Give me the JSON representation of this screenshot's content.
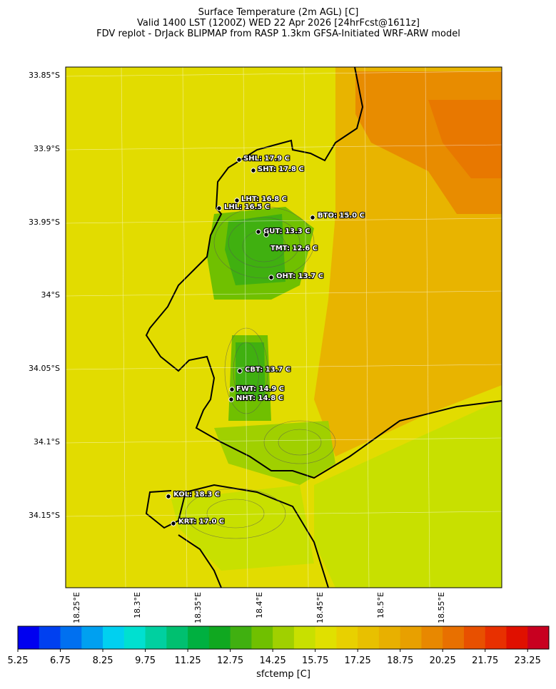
{
  "title": {
    "lines": [
      "Surface Temperature (2m AGL) [C]",
      "Valid 1400 LST (1200Z) WED 22 Apr 2026 [24hrFcst@1611z]",
      "FDV replot - DrJack BLIPMAP from RASP 1.3km GFSA-Initiated WRF-ARW model"
    ]
  },
  "lat_labels": [
    "33.85°S",
    "33.9°S",
    "33.95°S",
    "34°S",
    "34.05°S",
    "34.1°S",
    "34.15°S"
  ],
  "lon_labels": [
    "18.25°E",
    "18.3°E",
    "18.35°E",
    "18.4°E",
    "18.45°E",
    "18.5°E",
    "18.55°E"
  ],
  "stations": [
    "SHL: 17.9 C",
    "SHT: 17.8 C",
    "LHT: 16.8 C",
    "LHL: 16.5 C",
    "BTO: 15.0 C",
    "GUT: 13.3 C",
    "TMT: 12.6 C",
    "OHT: 13.7 C",
    "CBT: 13.7 C",
    "FWT: 14.9 C",
    "NHT: 14.8 C",
    "KOL: 18.3 C",
    "KRT: 17.0 C"
  ],
  "colorbar": {
    "ticks": [
      5.25,
      6.75,
      8.25,
      9.75,
      11.25,
      12.75,
      14.25,
      15.75,
      17.25,
      18.75,
      20.25,
      21.75,
      23.25
    ],
    "label": "sfctemp [C]"
  }
}
